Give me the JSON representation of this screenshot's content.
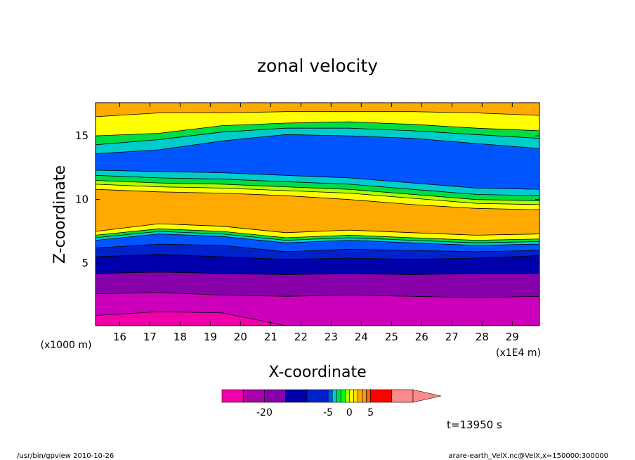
{
  "chart_data": {
    "type": "heatmap",
    "subtype": "filled-contour",
    "title": "zonal velocity",
    "xlabel": "X-coordinate",
    "ylabel": "Z-coordinate",
    "x_unit_label": "(x1E4 m)",
    "y_unit_label": "(x1000 m)",
    "xlim": [
      15.2,
      29.9
    ],
    "ylim": [
      0.1,
      17.6
    ],
    "x_ticks": [
      "16",
      "17",
      "18",
      "19",
      "20",
      "21",
      "22",
      "23",
      "24",
      "25",
      "26",
      "27",
      "28",
      "29"
    ],
    "y_ticks": [
      "5",
      "10",
      "15"
    ],
    "y_tick_values": [
      5,
      10,
      15
    ],
    "colorbar": {
      "labels": [
        "-20",
        "-5",
        "0",
        "5"
      ],
      "levels": [
        -30,
        -25,
        -20,
        -15,
        -10,
        -5,
        -4,
        -3,
        -2,
        -1,
        0,
        1,
        2,
        3,
        4,
        5,
        10,
        15,
        20
      ],
      "colors": [
        "#ee00aa",
        "#aa00aa",
        "#8800aa",
        "#0000aa",
        "#0022cc",
        "#0055ff",
        "#00cccc",
        "#00dd44",
        "#00ff00",
        "#aaff00",
        "#ffff00",
        "#ffdd00",
        "#ffaa00",
        "#ff9900",
        "#ff6600",
        "#ff0000",
        "#ff8888"
      ],
      "extend": "max"
    },
    "legend": "bottom-center colorbar",
    "grid": false,
    "bands": [
      {
        "color": "#ee00aa",
        "value": -30,
        "lower": [
          0.1,
          0.1,
          0.1,
          0.1,
          0.1,
          0.1,
          0.1,
          0.1
        ],
        "upper": [
          0.9,
          1.2,
          1.1,
          0.1,
          0.1,
          0.1,
          0.1,
          0.1
        ]
      },
      {
        "color": "#cc00bb",
        "value": -27,
        "lower": [
          0.9,
          1.2,
          1.1,
          0.1,
          0.1,
          0.1,
          0.1,
          0.1
        ],
        "upper": [
          2.6,
          2.7,
          2.5,
          2.4,
          2.5,
          2.4,
          2.3,
          2.4
        ]
      },
      {
        "color": "#8800aa",
        "value": -22,
        "lower": [
          2.6,
          2.7,
          2.5,
          2.4,
          2.5,
          2.4,
          2.3,
          2.4
        ],
        "upper": [
          4.2,
          4.3,
          4.2,
          4.1,
          4.2,
          4.1,
          4.2,
          4.2
        ]
      },
      {
        "color": "#0000aa",
        "value": -17,
        "lower": [
          4.2,
          4.3,
          4.2,
          4.1,
          4.2,
          4.1,
          4.2,
          4.2
        ],
        "upper": [
          5.5,
          5.7,
          5.5,
          5.3,
          5.4,
          5.3,
          5.4,
          5.6
        ]
      },
      {
        "color": "#0022cc",
        "value": -12,
        "lower": [
          5.5,
          5.7,
          5.5,
          5.3,
          5.4,
          5.3,
          5.4,
          5.6
        ],
        "upper": [
          6.2,
          6.5,
          6.4,
          5.9,
          6.1,
          6.0,
          5.9,
          6.0
        ]
      },
      {
        "color": "#0055ff",
        "value": -7,
        "lower": [
          6.2,
          6.5,
          6.4,
          5.9,
          6.1,
          6.0,
          5.9,
          6.0
        ],
        "upper": [
          6.8,
          7.3,
          7.1,
          6.6,
          6.8,
          6.6,
          6.4,
          6.5
        ]
      },
      {
        "color": "#00cccc",
        "value": -4.5,
        "lower": [
          6.8,
          7.3,
          7.1,
          6.6,
          6.8,
          6.6,
          6.4,
          6.5
        ],
        "upper": [
          7.0,
          7.5,
          7.3,
          6.8,
          7.0,
          6.8,
          6.6,
          6.7
        ]
      },
      {
        "color": "#00dd44",
        "value": -3.5,
        "lower": [
          7.0,
          7.5,
          7.3,
          6.8,
          7.0,
          6.8,
          6.6,
          6.7
        ],
        "upper": [
          7.2,
          7.7,
          7.5,
          7.0,
          7.2,
          7.0,
          6.8,
          6.9
        ]
      },
      {
        "color": "#ffff00",
        "value": 0.5,
        "lower": [
          7.2,
          7.7,
          7.5,
          7.0,
          7.2,
          7.0,
          6.8,
          6.9
        ],
        "upper": [
          7.5,
          8.1,
          7.9,
          7.4,
          7.6,
          7.4,
          7.2,
          7.3
        ]
      },
      {
        "color": "#ffaa00",
        "value": 2.5,
        "lower": [
          7.5,
          8.1,
          7.9,
          7.4,
          7.6,
          7.4,
          7.2,
          7.3
        ],
        "upper": [
          10.8,
          10.6,
          10.5,
          10.3,
          10.0,
          9.6,
          9.3,
          9.2
        ]
      },
      {
        "color": "#ffff00",
        "value": 0.5,
        "lower": [
          10.8,
          10.6,
          10.5,
          10.3,
          10.0,
          9.6,
          9.3,
          9.2
        ],
        "upper": [
          11.2,
          11.0,
          10.9,
          10.7,
          10.5,
          10.1,
          9.7,
          9.6
        ]
      },
      {
        "color": "#aaff00",
        "value": -0.5,
        "lower": [
          11.2,
          11.0,
          10.9,
          10.7,
          10.5,
          10.1,
          9.7,
          9.6
        ],
        "upper": [
          11.5,
          11.3,
          11.2,
          11.0,
          10.8,
          10.4,
          10.0,
          9.9
        ]
      },
      {
        "color": "#00dd44",
        "value": -3.5,
        "lower": [
          11.5,
          11.3,
          11.2,
          11.0,
          10.8,
          10.4,
          10.0,
          9.9
        ],
        "upper": [
          11.9,
          11.7,
          11.6,
          11.4,
          11.2,
          10.8,
          10.4,
          10.3
        ]
      },
      {
        "color": "#00cccc",
        "value": -4.5,
        "lower": [
          11.9,
          11.7,
          11.6,
          11.4,
          11.2,
          10.8,
          10.4,
          10.3
        ],
        "upper": [
          12.3,
          12.2,
          12.1,
          11.9,
          11.7,
          11.3,
          10.9,
          10.8
        ]
      },
      {
        "color": "#0055ff",
        "value": -7,
        "lower": [
          12.3,
          12.2,
          12.1,
          11.9,
          11.7,
          11.3,
          10.9,
          10.8
        ],
        "upper": [
          13.6,
          13.9,
          14.6,
          15.1,
          15.0,
          14.8,
          14.4,
          14.0
        ]
      },
      {
        "color": "#00cccc",
        "value": -4.5,
        "lower": [
          13.6,
          13.9,
          14.6,
          15.1,
          15.0,
          14.8,
          14.4,
          14.0
        ],
        "upper": [
          14.3,
          14.7,
          15.3,
          15.6,
          15.6,
          15.4,
          15.1,
          14.8
        ]
      },
      {
        "color": "#00dd44",
        "value": -3.5,
        "lower": [
          14.3,
          14.7,
          15.3,
          15.6,
          15.6,
          15.4,
          15.1,
          14.8
        ],
        "upper": [
          15.0,
          15.2,
          15.8,
          16.0,
          16.1,
          15.9,
          15.6,
          15.4
        ]
      },
      {
        "color": "#ffff00",
        "value": 0.5,
        "lower": [
          15.0,
          15.2,
          15.8,
          16.0,
          16.1,
          15.9,
          15.6,
          15.4
        ],
        "upper": [
          16.5,
          16.8,
          16.8,
          16.9,
          16.9,
          16.9,
          16.8,
          16.6
        ]
      },
      {
        "color": "#ffaa00",
        "value": 2.5,
        "lower": [
          16.5,
          16.8,
          16.8,
          16.9,
          16.9,
          16.9,
          16.8,
          16.6
        ],
        "upper": [
          17.6,
          17.6,
          17.6,
          17.6,
          17.6,
          17.6,
          17.6,
          17.6
        ]
      }
    ],
    "band_x": [
      15.2,
      17.3,
      19.4,
      21.5,
      23.6,
      25.7,
      27.8,
      29.9
    ]
  },
  "footer": {
    "program": "/usr/bin/gpview  2010-10-26",
    "source": "arare-earth_VelX.nc@VelX,x=150000:300000",
    "time": "t=13950 s"
  }
}
